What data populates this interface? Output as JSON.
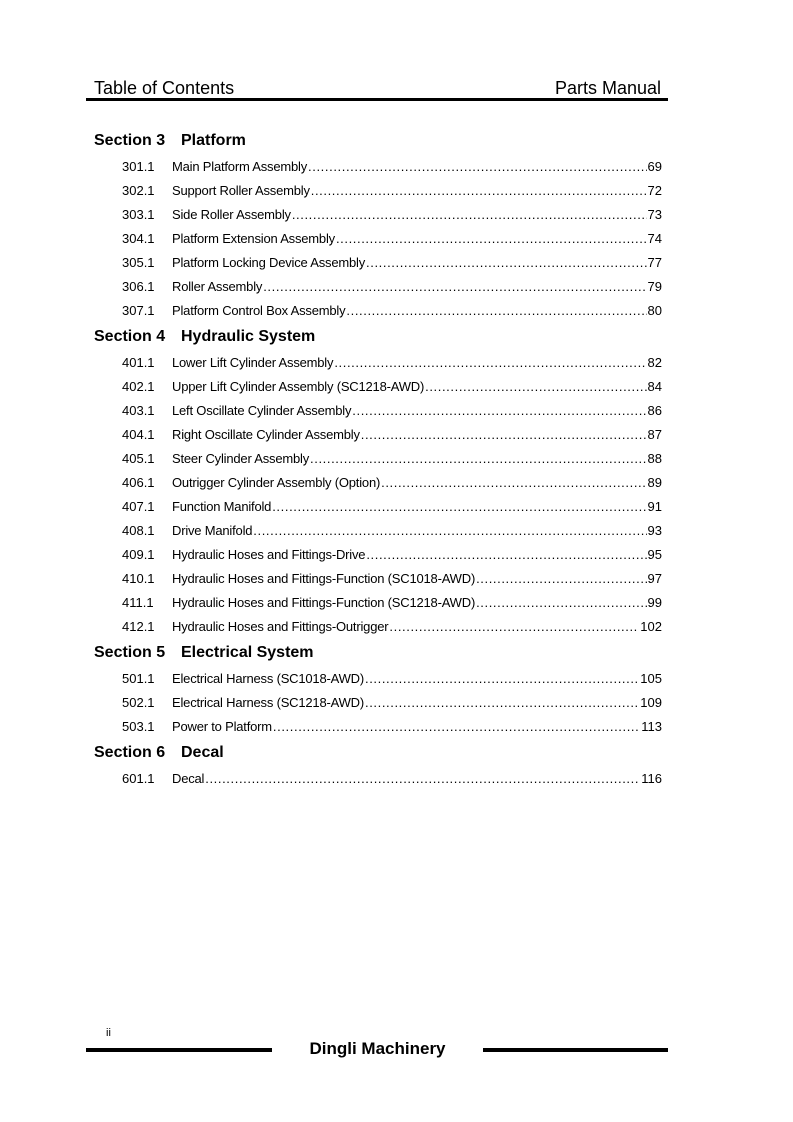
{
  "header": {
    "left": "Table of Contents",
    "right": "Parts Manual"
  },
  "sections": [
    {
      "number": "Section 3",
      "title": "Platform",
      "entries": [
        {
          "num": "301.1",
          "title": "Main Platform Assembly",
          "page": "69"
        },
        {
          "num": "302.1",
          "title": "Support Roller Assembly",
          "page": "72"
        },
        {
          "num": "303.1",
          "title": "Side Roller Assembly",
          "page": "73"
        },
        {
          "num": "304.1",
          "title": "Platform Extension Assembly",
          "page": "74"
        },
        {
          "num": "305.1",
          "title": "Platform Locking Device Assembly",
          "page": "77"
        },
        {
          "num": "306.1",
          "title": "Roller Assembly",
          "page": "79"
        },
        {
          "num": "307.1",
          "title": "Platform Control Box Assembly",
          "page": "80"
        }
      ]
    },
    {
      "number": "Section 4",
      "title": "Hydraulic System",
      "entries": [
        {
          "num": "401.1",
          "title": "Lower Lift Cylinder Assembly",
          "page": "82"
        },
        {
          "num": "402.1",
          "title": "Upper Lift Cylinder Assembly (SC1218-AWD)",
          "page": "84"
        },
        {
          "num": "403.1",
          "title": "Left Oscillate Cylinder Assembly",
          "page": "86"
        },
        {
          "num": "404.1",
          "title": "Right Oscillate Cylinder Assembly",
          "page": "87"
        },
        {
          "num": "405.1",
          "title": "Steer Cylinder Assembly",
          "page": "88"
        },
        {
          "num": "406.1",
          "title": "Outrigger Cylinder Assembly (Option)",
          "page": "89"
        },
        {
          "num": "407.1",
          "title": "Function Manifold",
          "page": "91"
        },
        {
          "num": "408.1",
          "title": "Drive Manifold",
          "page": "93"
        },
        {
          "num": "409.1",
          "title": "Hydraulic Hoses and Fittings-Drive",
          "page": "95"
        },
        {
          "num": "410.1",
          "title": "Hydraulic Hoses and Fittings-Function (SC1018-AWD)",
          "page": "97"
        },
        {
          "num": "411.1",
          "title": "Hydraulic Hoses and Fittings-Function (SC1218-AWD)",
          "page": "99"
        },
        {
          "num": "412.1",
          "title": "Hydraulic Hoses and Fittings-Outrigger",
          "page": "102"
        }
      ]
    },
    {
      "number": "Section 5",
      "title": "Electrical System",
      "entries": [
        {
          "num": "501.1",
          "title": "Electrical Harness (SC1018-AWD)",
          "page": "105"
        },
        {
          "num": "502.1",
          "title": "Electrical Harness (SC1218-AWD)",
          "page": "109"
        },
        {
          "num": "503.1",
          "title": "Power to Platform",
          "page": "113"
        }
      ]
    },
    {
      "number": "Section 6",
      "title": "Decal",
      "entries": [
        {
          "num": "601.1",
          "title": "Decal",
          "page": "116"
        }
      ]
    }
  ],
  "footer": {
    "page_number": "ii",
    "company": "Dingli Machinery"
  }
}
